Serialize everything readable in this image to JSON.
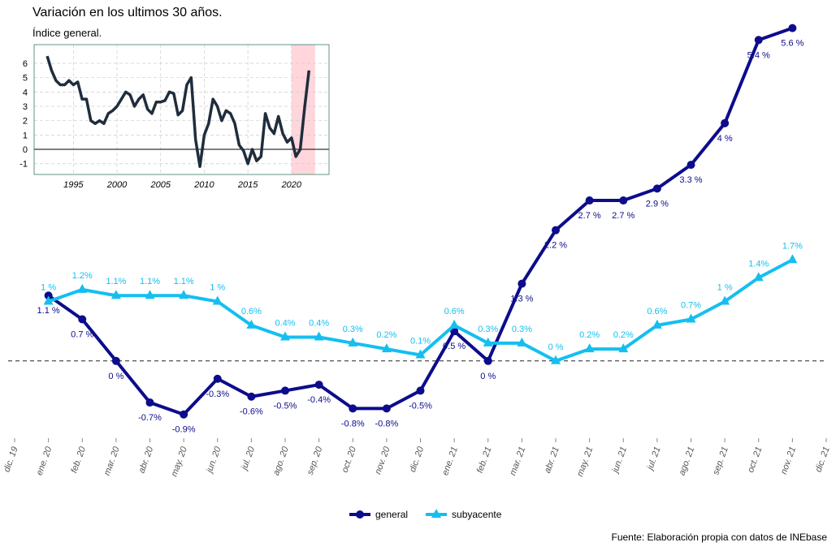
{
  "chart_data": [
    {
      "type": "line",
      "title": "Variación en los ultimos 30 años.",
      "subtitle": "Índice general.",
      "x": [
        1992,
        1992.5,
        1993,
        1993.5,
        1994,
        1994.5,
        1995,
        1995.5,
        1996,
        1996.5,
        1997,
        1997.5,
        1998,
        1998.5,
        1999,
        1999.5,
        2000,
        2000.5,
        2001,
        2001.5,
        2002,
        2002.5,
        2003,
        2003.5,
        2004,
        2004.5,
        2005,
        2005.5,
        2006,
        2006.5,
        2007,
        2007.5,
        2008,
        2008.5,
        2009,
        2009.5,
        2010,
        2010.5,
        2011,
        2011.5,
        2012,
        2012.5,
        2013,
        2013.5,
        2014,
        2014.5,
        2015,
        2015.5,
        2016,
        2016.5,
        2017,
        2017.5,
        2018,
        2018.5,
        2019,
        2019.5,
        2020,
        2020.5,
        2021,
        2021.5,
        2022
      ],
      "series": [
        {
          "name": "general",
          "color": "#1f2d3d",
          "values": [
            6.5,
            5.5,
            4.8,
            4.5,
            4.5,
            4.8,
            4.5,
            4.7,
            3.5,
            3.5,
            2.0,
            1.8,
            2.0,
            1.8,
            2.5,
            2.7,
            3.0,
            3.5,
            4.0,
            3.8,
            3.0,
            3.5,
            3.8,
            2.8,
            2.5,
            3.3,
            3.3,
            3.4,
            4.0,
            3.9,
            2.4,
            2.7,
            4.5,
            5.0,
            0.7,
            -1.2,
            1.0,
            1.8,
            3.5,
            3.0,
            2.0,
            2.7,
            2.5,
            1.8,
            0.3,
            -0.1,
            -1.0,
            0.0,
            -0.8,
            -0.5,
            2.5,
            1.5,
            1.1,
            2.3,
            1.1,
            0.5,
            0.8,
            -0.5,
            0.0,
            2.9,
            5.5
          ]
        }
      ],
      "highlight": [
        2020,
        2022.7
      ],
      "highlight_color": "#ffd6dc",
      "xlim": [
        1990.5,
        2024.3
      ],
      "ylim": [
        -1.75,
        7.3
      ],
      "xticks": [
        1995,
        2000,
        2005,
        2010,
        2015,
        2020
      ],
      "yticks": [
        -1,
        0,
        1,
        2,
        3,
        4,
        5,
        6
      ],
      "grid": true
    },
    {
      "type": "line",
      "categories": [
        "dic. 19",
        "ene. 20",
        "feb. 20",
        "mar. 20",
        "abr. 20",
        "may. 20",
        "jun. 20",
        "jul. 20",
        "ago. 20",
        "sep. 20",
        "oct. 20",
        "nov. 20",
        "dic. 20",
        "ene. 21",
        "feb. 21",
        "mar. 21",
        "abr. 21",
        "may. 21",
        "jun. 21",
        "jul. 21",
        "ago. 21",
        "sep. 21",
        "oct. 21",
        "nov. 21",
        "dic. 21"
      ],
      "series": [
        {
          "name": "general",
          "color": "#0c0c8c",
          "marker": "circle",
          "values": [
            null,
            1.1,
            0.7,
            0,
            -0.7,
            -0.9,
            -0.3,
            -0.6,
            -0.5,
            -0.4,
            -0.8,
            -0.8,
            -0.5,
            0.5,
            0,
            1.3,
            2.2,
            2.7,
            2.7,
            2.9,
            3.3,
            4,
            5.4,
            5.6,
            null
          ],
          "value_labels": [
            null,
            "1.1 %",
            "0.7 %",
            "0 %",
            "-0.7%",
            "-0.9%",
            "-0.3%",
            "-0.6%",
            "-0.5%",
            "-0.4%",
            "-0.8%",
            "-0.8%",
            "-0.5%",
            "0.5 %",
            "0 %",
            "1.3 %",
            "2.2 %",
            "2.7 %",
            "2.7 %",
            "2.9 %",
            "3.3 %",
            "4 %",
            "5.4 %",
            "5.6 %",
            null
          ]
        },
        {
          "name": "subyacente",
          "color": "#14bff0",
          "marker": "triangle",
          "values": [
            null,
            1,
            1.2,
            1.1,
            1.1,
            1.1,
            1,
            0.6,
            0.4,
            0.4,
            0.3,
            0.2,
            0.1,
            0.6,
            0.3,
            0.3,
            0,
            0.2,
            0.2,
            0.6,
            0.7,
            1,
            1.4,
            1.7,
            null
          ],
          "value_labels": [
            null,
            "1 %",
            "1.2%",
            "1.1%",
            "1.1%",
            "1.1%",
            "1 %",
            "0.6%",
            "0.4%",
            "0.4%",
            "0.3%",
            "0.2%",
            "0.1%",
            "0.6%",
            "0.3%",
            "0.3%",
            "0 %",
            "0.2%",
            "0.2%",
            "0.6%",
            "0.7%",
            "1 %",
            "1.4%",
            "1.7%",
            null
          ]
        }
      ],
      "ylim": [
        -1.3,
        5.8
      ],
      "reference_line": 0,
      "legend": "bottom",
      "note": "Fuente: Elaboración propia con datos de INEbase"
    }
  ]
}
